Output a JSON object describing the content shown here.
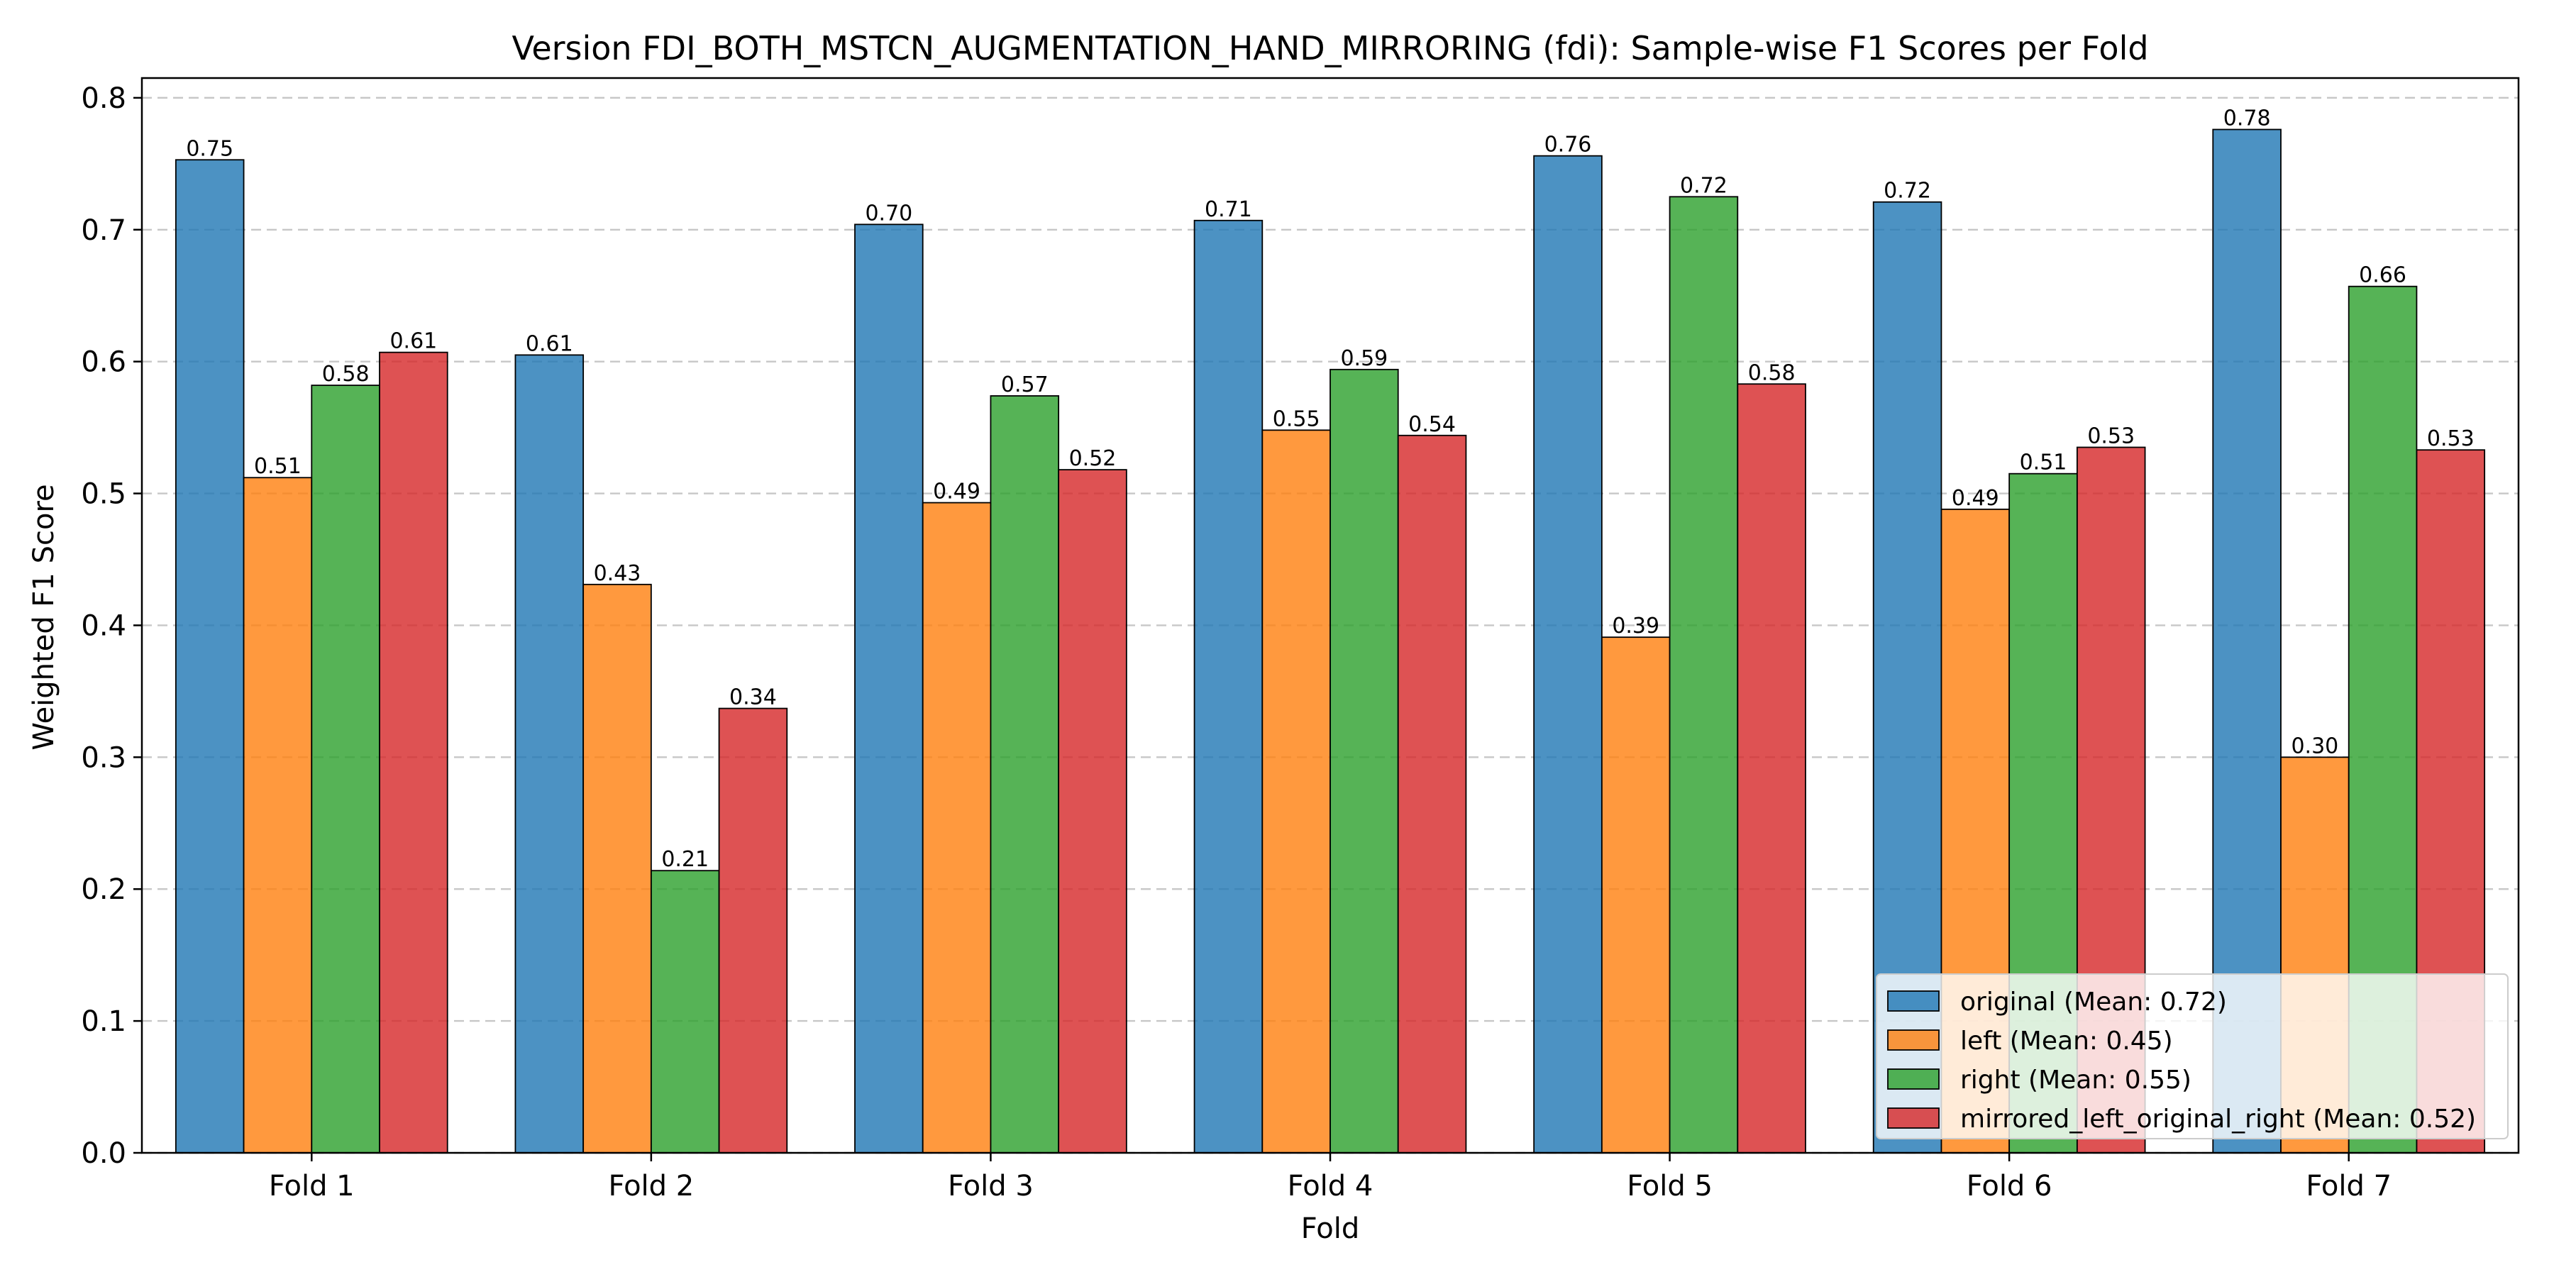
{
  "chart_data": {
    "type": "bar",
    "title": "Version FDI_BOTH_MSTCN_AUGMENTATION_HAND_MIRRORING (fdi): Sample-wise F1 Scores per Fold",
    "xlabel": "Fold",
    "ylabel": "Weighted F1 Score",
    "categories": [
      "Fold 1",
      "Fold 2",
      "Fold 3",
      "Fold 4",
      "Fold 5",
      "Fold 6",
      "Fold 7"
    ],
    "ylim": [
      0,
      0.815
    ],
    "yticks": [
      0.0,
      0.1,
      0.2,
      0.3,
      0.4,
      0.5,
      0.6,
      0.7,
      0.8
    ],
    "ytick_labels": [
      "0.0",
      "0.1",
      "0.2",
      "0.3",
      "0.4",
      "0.5",
      "0.6",
      "0.7",
      "0.8"
    ],
    "grid": "y-dashed",
    "legend_position": "lower-right",
    "series": [
      {
        "name": "original (Mean: 0.72)",
        "color": "#1f77b4",
        "values": [
          0.753,
          0.605,
          0.704,
          0.707,
          0.756,
          0.721,
          0.776
        ],
        "labels": [
          "0.75",
          "0.61",
          "0.70",
          "0.71",
          "0.76",
          "0.72",
          "0.78"
        ]
      },
      {
        "name": "left (Mean: 0.45)",
        "color": "#ff7f0e",
        "values": [
          0.512,
          0.431,
          0.493,
          0.548,
          0.391,
          0.488,
          0.3
        ],
        "labels": [
          "0.51",
          "0.43",
          "0.49",
          "0.55",
          "0.39",
          "0.49",
          "0.30"
        ]
      },
      {
        "name": "right (Mean: 0.55)",
        "color": "#2ca02c",
        "values": [
          0.582,
          0.214,
          0.574,
          0.594,
          0.725,
          0.515,
          0.657
        ],
        "labels": [
          "0.58",
          "0.21",
          "0.57",
          "0.59",
          "0.72",
          "0.51",
          "0.66"
        ]
      },
      {
        "name": "mirrored_left_original_right (Mean: 0.52)",
        "color": "#d62728",
        "values": [
          0.607,
          0.337,
          0.518,
          0.544,
          0.583,
          0.535,
          0.533
        ],
        "labels": [
          "0.61",
          "0.34",
          "0.52",
          "0.54",
          "0.58",
          "0.53",
          "0.53"
        ]
      }
    ]
  }
}
